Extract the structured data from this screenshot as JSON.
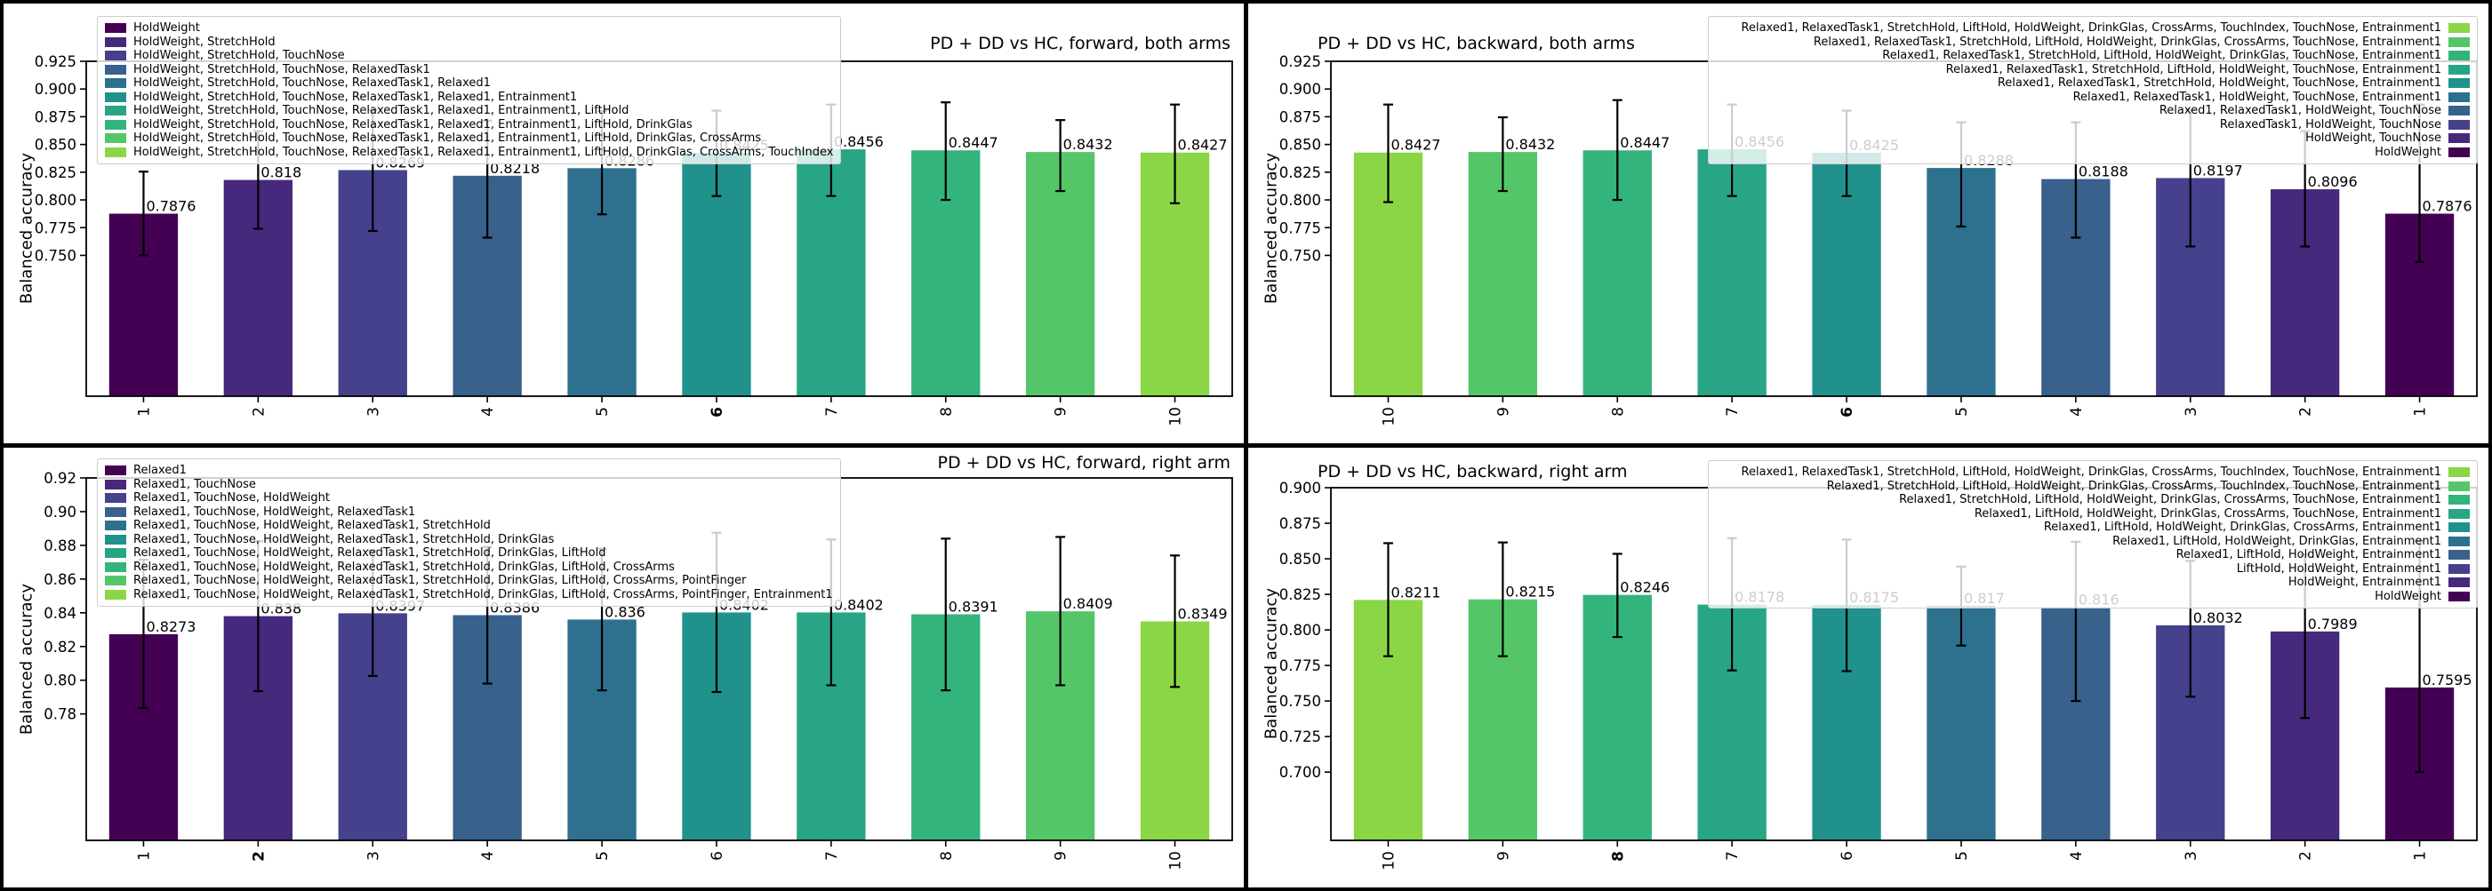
{
  "figure": {
    "background": "#000000",
    "panel_background": "#ffffff"
  },
  "palette_left_to_right_dark_to_light": [
    "#440154",
    "#46287c",
    "#45418d",
    "#38618c",
    "#2d718e",
    "#21918c",
    "#27a585",
    "#32b47c",
    "#55c667",
    "#8bd646"
  ],
  "chart_data": [
    {
      "id": "forward-both-arms",
      "type": "bar",
      "title": "PD + DD vs HC, forward, both arms",
      "title_loc": "right",
      "ylabel": "Balanced accuracy",
      "ylim": [
        0.623,
        0.925
      ],
      "grid": false,
      "yticks": {
        "labels": [
          "0.925",
          "0.900",
          "0.875",
          "0.850",
          "0.825",
          "0.800",
          "0.775",
          "0.750"
        ],
        "values": [
          0.925,
          0.9,
          0.875,
          0.85,
          0.825,
          0.8,
          0.775,
          0.75
        ]
      },
      "categories": [
        "1",
        "2",
        "3",
        "4",
        "5",
        "6",
        "7",
        "8",
        "9",
        "10"
      ],
      "bold_category": "6",
      "bars": [
        {
          "label": "1",
          "value": 0.7876,
          "display": "0.7876",
          "lo": 0.75,
          "hi": 0.8255,
          "color": "#440154"
        },
        {
          "label": "2",
          "value": 0.818,
          "display": "0.818",
          "lo": 0.774,
          "hi": 0.862,
          "color": "#46287c"
        },
        {
          "label": "3",
          "value": 0.8269,
          "display": "0.8269",
          "lo": 0.772,
          "hi": 0.881,
          "color": "#45418d"
        },
        {
          "label": "4",
          "value": 0.8218,
          "display": "0.8218",
          "lo": 0.766,
          "hi": 0.8715,
          "color": "#38618c"
        },
        {
          "label": "5",
          "value": 0.8286,
          "display": "0.8286",
          "lo": 0.787,
          "hi": 0.88,
          "color": "#2d718e"
        },
        {
          "label": "6",
          "value": 0.8425,
          "display": "0.8425",
          "lo": 0.8035,
          "hi": 0.8805,
          "color": "#21918c"
        },
        {
          "label": "7",
          "value": 0.8456,
          "display": "0.8456",
          "lo": 0.8035,
          "hi": 0.886,
          "color": "#27a585"
        },
        {
          "label": "8",
          "value": 0.8447,
          "display": "0.8447",
          "lo": 0.8,
          "hi": 0.888,
          "color": "#32b47c"
        },
        {
          "label": "9",
          "value": 0.8432,
          "display": "0.8432",
          "lo": 0.808,
          "hi": 0.872,
          "color": "#55c667"
        },
        {
          "label": "10",
          "value": 0.8427,
          "display": "0.8427",
          "lo": 0.797,
          "hi": 0.886,
          "color": "#8bd646"
        }
      ],
      "legend": {
        "position": "upper-left",
        "marker_side": "left",
        "entries": [
          {
            "label": "HoldWeight",
            "color": "#440154"
          },
          {
            "label": "HoldWeight, StretchHold",
            "color": "#46287c"
          },
          {
            "label": "HoldWeight, StretchHold, TouchNose",
            "color": "#45418d"
          },
          {
            "label": "HoldWeight, StretchHold, TouchNose, RelaxedTask1",
            "color": "#38618c"
          },
          {
            "label": "HoldWeight, StretchHold, TouchNose, RelaxedTask1, Relaxed1",
            "color": "#2d718e"
          },
          {
            "label": "HoldWeight, StretchHold, TouchNose, RelaxedTask1, Relaxed1, Entrainment1",
            "color": "#21918c"
          },
          {
            "label": "HoldWeight, StretchHold, TouchNose, RelaxedTask1, Relaxed1, Entrainment1, LiftHold",
            "color": "#27a585"
          },
          {
            "label": "HoldWeight, StretchHold, TouchNose, RelaxedTask1, Relaxed1, Entrainment1, LiftHold, DrinkGlas",
            "color": "#32b47c"
          },
          {
            "label": "HoldWeight, StretchHold, TouchNose, RelaxedTask1, Relaxed1, Entrainment1, LiftHold, DrinkGlas, CrossArms",
            "color": "#55c667"
          },
          {
            "label": "HoldWeight, StretchHold, TouchNose, RelaxedTask1, Relaxed1, Entrainment1, LiftHold, DrinkGlas, CrossArms, TouchIndex",
            "color": "#8bd646"
          }
        ]
      }
    },
    {
      "id": "backward-both-arms",
      "type": "bar",
      "title": "PD + DD vs HC, backward, both arms",
      "title_loc": "left",
      "ylabel": "Balanced accuracy",
      "ylim": [
        0.623,
        0.925
      ],
      "grid": false,
      "yticks": {
        "labels": [
          "0.925",
          "0.900",
          "0.875",
          "0.850",
          "0.825",
          "0.800",
          "0.775",
          "0.750"
        ],
        "values": [
          0.925,
          0.9,
          0.875,
          0.85,
          0.825,
          0.8,
          0.775,
          0.75
        ]
      },
      "categories": [
        "10",
        "9",
        "8",
        "7",
        "6",
        "5",
        "4",
        "3",
        "2",
        "1"
      ],
      "bold_category": "6",
      "bars": [
        {
          "label": "10",
          "value": 0.8427,
          "display": "0.8427",
          "lo": 0.798,
          "hi": 0.886,
          "color": "#8bd646"
        },
        {
          "label": "9",
          "value": 0.8432,
          "display": "0.8432",
          "lo": 0.808,
          "hi": 0.8745,
          "color": "#55c667"
        },
        {
          "label": "8",
          "value": 0.8447,
          "display": "0.8447",
          "lo": 0.8,
          "hi": 0.89,
          "color": "#32b47c"
        },
        {
          "label": "7",
          "value": 0.8456,
          "display": "0.8456",
          "lo": 0.8035,
          "hi": 0.886,
          "color": "#27a585"
        },
        {
          "label": "6",
          "value": 0.8425,
          "display": "0.8425",
          "lo": 0.8035,
          "hi": 0.8805,
          "color": "#21918c"
        },
        {
          "label": "5",
          "value": 0.8288,
          "display": "0.8288",
          "lo": 0.776,
          "hi": 0.87,
          "color": "#2d718e"
        },
        {
          "label": "4",
          "value": 0.8188,
          "display": "0.8188",
          "lo": 0.766,
          "hi": 0.87,
          "color": "#38618c"
        },
        {
          "label": "3",
          "value": 0.8197,
          "display": "0.8197",
          "lo": 0.758,
          "hi": 0.881,
          "color": "#45418d"
        },
        {
          "label": "2",
          "value": 0.8096,
          "display": "0.8096",
          "lo": 0.758,
          "hi": 0.862,
          "color": "#46287c"
        },
        {
          "label": "1",
          "value": 0.7876,
          "display": "0.7876",
          "lo": 0.744,
          "hi": 0.886,
          "color": "#440154"
        }
      ],
      "legend": {
        "position": "upper-right",
        "marker_side": "right",
        "entries": [
          {
            "label": "Relaxed1, RelaxedTask1, StretchHold, LiftHold, HoldWeight, DrinkGlas, CrossArms, TouchIndex, TouchNose, Entrainment1",
            "color": "#8bd646"
          },
          {
            "label": "Relaxed1, RelaxedTask1, StretchHold, LiftHold, HoldWeight, DrinkGlas, CrossArms, TouchNose, Entrainment1",
            "color": "#55c667"
          },
          {
            "label": "Relaxed1, RelaxedTask1, StretchHold, LiftHold, HoldWeight, DrinkGlas, TouchNose, Entrainment1",
            "color": "#32b47c"
          },
          {
            "label": "Relaxed1, RelaxedTask1, StretchHold, LiftHold, HoldWeight, TouchNose, Entrainment1",
            "color": "#27a585"
          },
          {
            "label": "Relaxed1, RelaxedTask1, StretchHold, HoldWeight, TouchNose, Entrainment1",
            "color": "#21918c"
          },
          {
            "label": "Relaxed1, RelaxedTask1, HoldWeight, TouchNose, Entrainment1",
            "color": "#2d718e"
          },
          {
            "label": "Relaxed1, RelaxedTask1, HoldWeight, TouchNose",
            "color": "#38618c"
          },
          {
            "label": "RelaxedTask1, HoldWeight, TouchNose",
            "color": "#45418d"
          },
          {
            "label": "HoldWeight, TouchNose",
            "color": "#46287c"
          },
          {
            "label": "HoldWeight",
            "color": "#440154"
          }
        ]
      }
    },
    {
      "id": "forward-right-arm",
      "type": "bar",
      "title": "PD + DD vs HC, forward, right arm",
      "title_loc": "right",
      "ylabel": "Balanced accuracy",
      "ylim": [
        0.705,
        0.92
      ],
      "grid": false,
      "yticks": {
        "labels": [
          "0.92",
          "0.90",
          "0.88",
          "0.86",
          "0.84",
          "0.82",
          "0.80",
          "0.78"
        ],
        "values": [
          0.92,
          0.9,
          0.88,
          0.86,
          0.84,
          0.82,
          0.8,
          0.78
        ]
      },
      "categories": [
        "1",
        "2",
        "3",
        "4",
        "5",
        "6",
        "7",
        "8",
        "9",
        "10"
      ],
      "bold_category": "2",
      "bars": [
        {
          "label": "1",
          "value": 0.8273,
          "display": "0.8273",
          "lo": 0.7835,
          "hi": 0.8715,
          "color": "#440154"
        },
        {
          "label": "2",
          "value": 0.838,
          "display": "0.838",
          "lo": 0.7935,
          "hi": 0.8825,
          "color": "#46287c"
        },
        {
          "label": "3",
          "value": 0.8397,
          "display": "0.8397",
          "lo": 0.8025,
          "hi": 0.877,
          "color": "#45418d"
        },
        {
          "label": "4",
          "value": 0.8386,
          "display": "0.8386",
          "lo": 0.798,
          "hi": 0.879,
          "color": "#38618c"
        },
        {
          "label": "5",
          "value": 0.836,
          "display": "0.836",
          "lo": 0.794,
          "hi": 0.878,
          "color": "#2d718e"
        },
        {
          "label": "6",
          "value": 0.8402,
          "display": "0.8402",
          "lo": 0.793,
          "hi": 0.8875,
          "color": "#21918c"
        },
        {
          "label": "7",
          "value": 0.8402,
          "display": "0.8402",
          "lo": 0.797,
          "hi": 0.8835,
          "color": "#27a585"
        },
        {
          "label": "8",
          "value": 0.8391,
          "display": "0.8391",
          "lo": 0.794,
          "hi": 0.884,
          "color": "#32b47c"
        },
        {
          "label": "9",
          "value": 0.8409,
          "display": "0.8409",
          "lo": 0.797,
          "hi": 0.885,
          "color": "#55c667"
        },
        {
          "label": "10",
          "value": 0.8349,
          "display": "0.8349",
          "lo": 0.796,
          "hi": 0.874,
          "color": "#8bd646"
        }
      ],
      "legend": {
        "position": "upper-left",
        "marker_side": "left",
        "entries": [
          {
            "label": "Relaxed1",
            "color": "#440154"
          },
          {
            "label": "Relaxed1, TouchNose",
            "color": "#46287c"
          },
          {
            "label": "Relaxed1, TouchNose, HoldWeight",
            "color": "#45418d"
          },
          {
            "label": "Relaxed1, TouchNose, HoldWeight, RelaxedTask1",
            "color": "#38618c"
          },
          {
            "label": "Relaxed1, TouchNose, HoldWeight, RelaxedTask1, StretchHold",
            "color": "#2d718e"
          },
          {
            "label": "Relaxed1, TouchNose, HoldWeight, RelaxedTask1, StretchHold, DrinkGlas",
            "color": "#21918c"
          },
          {
            "label": "Relaxed1, TouchNose, HoldWeight, RelaxedTask1, StretchHold, DrinkGlas, LiftHold",
            "color": "#27a585"
          },
          {
            "label": "Relaxed1, TouchNose, HoldWeight, RelaxedTask1, StretchHold, DrinkGlas, LiftHold, CrossArms",
            "color": "#32b47c"
          },
          {
            "label": "Relaxed1, TouchNose, HoldWeight, RelaxedTask1, StretchHold, DrinkGlas, LiftHold, CrossArms, PointFinger",
            "color": "#55c667"
          },
          {
            "label": "Relaxed1, TouchNose, HoldWeight, RelaxedTask1, StretchHold, DrinkGlas, LiftHold, CrossArms, PointFinger, Entrainment1",
            "color": "#8bd646"
          }
        ]
      }
    },
    {
      "id": "backward-right-arm",
      "type": "bar",
      "title": "PD + DD vs HC, backward, right arm",
      "title_loc": "left",
      "ylabel": "Balanced accuracy",
      "ylim": [
        0.652,
        0.9
      ],
      "grid": false,
      "yticks": {
        "labels": [
          "0.900",
          "0.875",
          "0.850",
          "0.825",
          "0.800",
          "0.775",
          "0.750",
          "0.725",
          "0.700"
        ],
        "values": [
          0.9,
          0.875,
          0.85,
          0.825,
          0.8,
          0.775,
          0.75,
          0.725,
          0.7
        ]
      },
      "categories": [
        "10",
        "9",
        "8",
        "7",
        "6",
        "5",
        "4",
        "3",
        "2",
        "1"
      ],
      "bold_category": "8",
      "bars": [
        {
          "label": "10",
          "value": 0.8211,
          "display": "0.8211",
          "lo": 0.7815,
          "hi": 0.861,
          "color": "#8bd646"
        },
        {
          "label": "9",
          "value": 0.8215,
          "display": "0.8215",
          "lo": 0.7815,
          "hi": 0.8615,
          "color": "#55c667"
        },
        {
          "label": "8",
          "value": 0.8246,
          "display": "0.8246",
          "lo": 0.795,
          "hi": 0.8535,
          "color": "#32b47c"
        },
        {
          "label": "7",
          "value": 0.8178,
          "display": "0.8178",
          "lo": 0.7715,
          "hi": 0.8645,
          "color": "#27a585"
        },
        {
          "label": "6",
          "value": 0.8175,
          "display": "0.8175",
          "lo": 0.771,
          "hi": 0.8635,
          "color": "#21918c"
        },
        {
          "label": "5",
          "value": 0.817,
          "display": "0.817",
          "lo": 0.789,
          "hi": 0.8445,
          "color": "#2d718e"
        },
        {
          "label": "4",
          "value": 0.816,
          "display": "0.816",
          "lo": 0.75,
          "hi": 0.862,
          "color": "#38618c"
        },
        {
          "label": "3",
          "value": 0.8032,
          "display": "0.8032",
          "lo": 0.753,
          "hi": 0.8485,
          "color": "#45418d"
        },
        {
          "label": "2",
          "value": 0.7989,
          "display": "0.7989",
          "lo": 0.738,
          "hi": 0.853,
          "color": "#46287c"
        },
        {
          "label": "1",
          "value": 0.7595,
          "display": "0.7595",
          "lo": 0.7,
          "hi": 0.8625,
          "color": "#440154"
        }
      ],
      "legend": {
        "position": "upper-right",
        "marker_side": "right",
        "entries": [
          {
            "label": "Relaxed1, RelaxedTask1, StretchHold, LiftHold, HoldWeight, DrinkGlas, CrossArms, TouchIndex, TouchNose, Entrainment1",
            "color": "#8bd646"
          },
          {
            "label": "Relaxed1, StretchHold, LiftHold, HoldWeight, DrinkGlas, CrossArms, TouchIndex, TouchNose, Entrainment1",
            "color": "#55c667"
          },
          {
            "label": "Relaxed1, StretchHold, LiftHold, HoldWeight, DrinkGlas, CrossArms, TouchNose, Entrainment1",
            "color": "#32b47c"
          },
          {
            "label": "Relaxed1, LiftHold, HoldWeight, DrinkGlas, CrossArms, TouchNose, Entrainment1",
            "color": "#27a585"
          },
          {
            "label": "Relaxed1, LiftHold, HoldWeight, DrinkGlas, CrossArms, Entrainment1",
            "color": "#21918c"
          },
          {
            "label": "Relaxed1, LiftHold, HoldWeight, DrinkGlas, Entrainment1",
            "color": "#2d718e"
          },
          {
            "label": "Relaxed1, LiftHold, HoldWeight, Entrainment1",
            "color": "#38618c"
          },
          {
            "label": "LiftHold, HoldWeight, Entrainment1",
            "color": "#45418d"
          },
          {
            "label": "HoldWeight, Entrainment1",
            "color": "#46287c"
          },
          {
            "label": "HoldWeight",
            "color": "#440154"
          }
        ]
      }
    }
  ]
}
